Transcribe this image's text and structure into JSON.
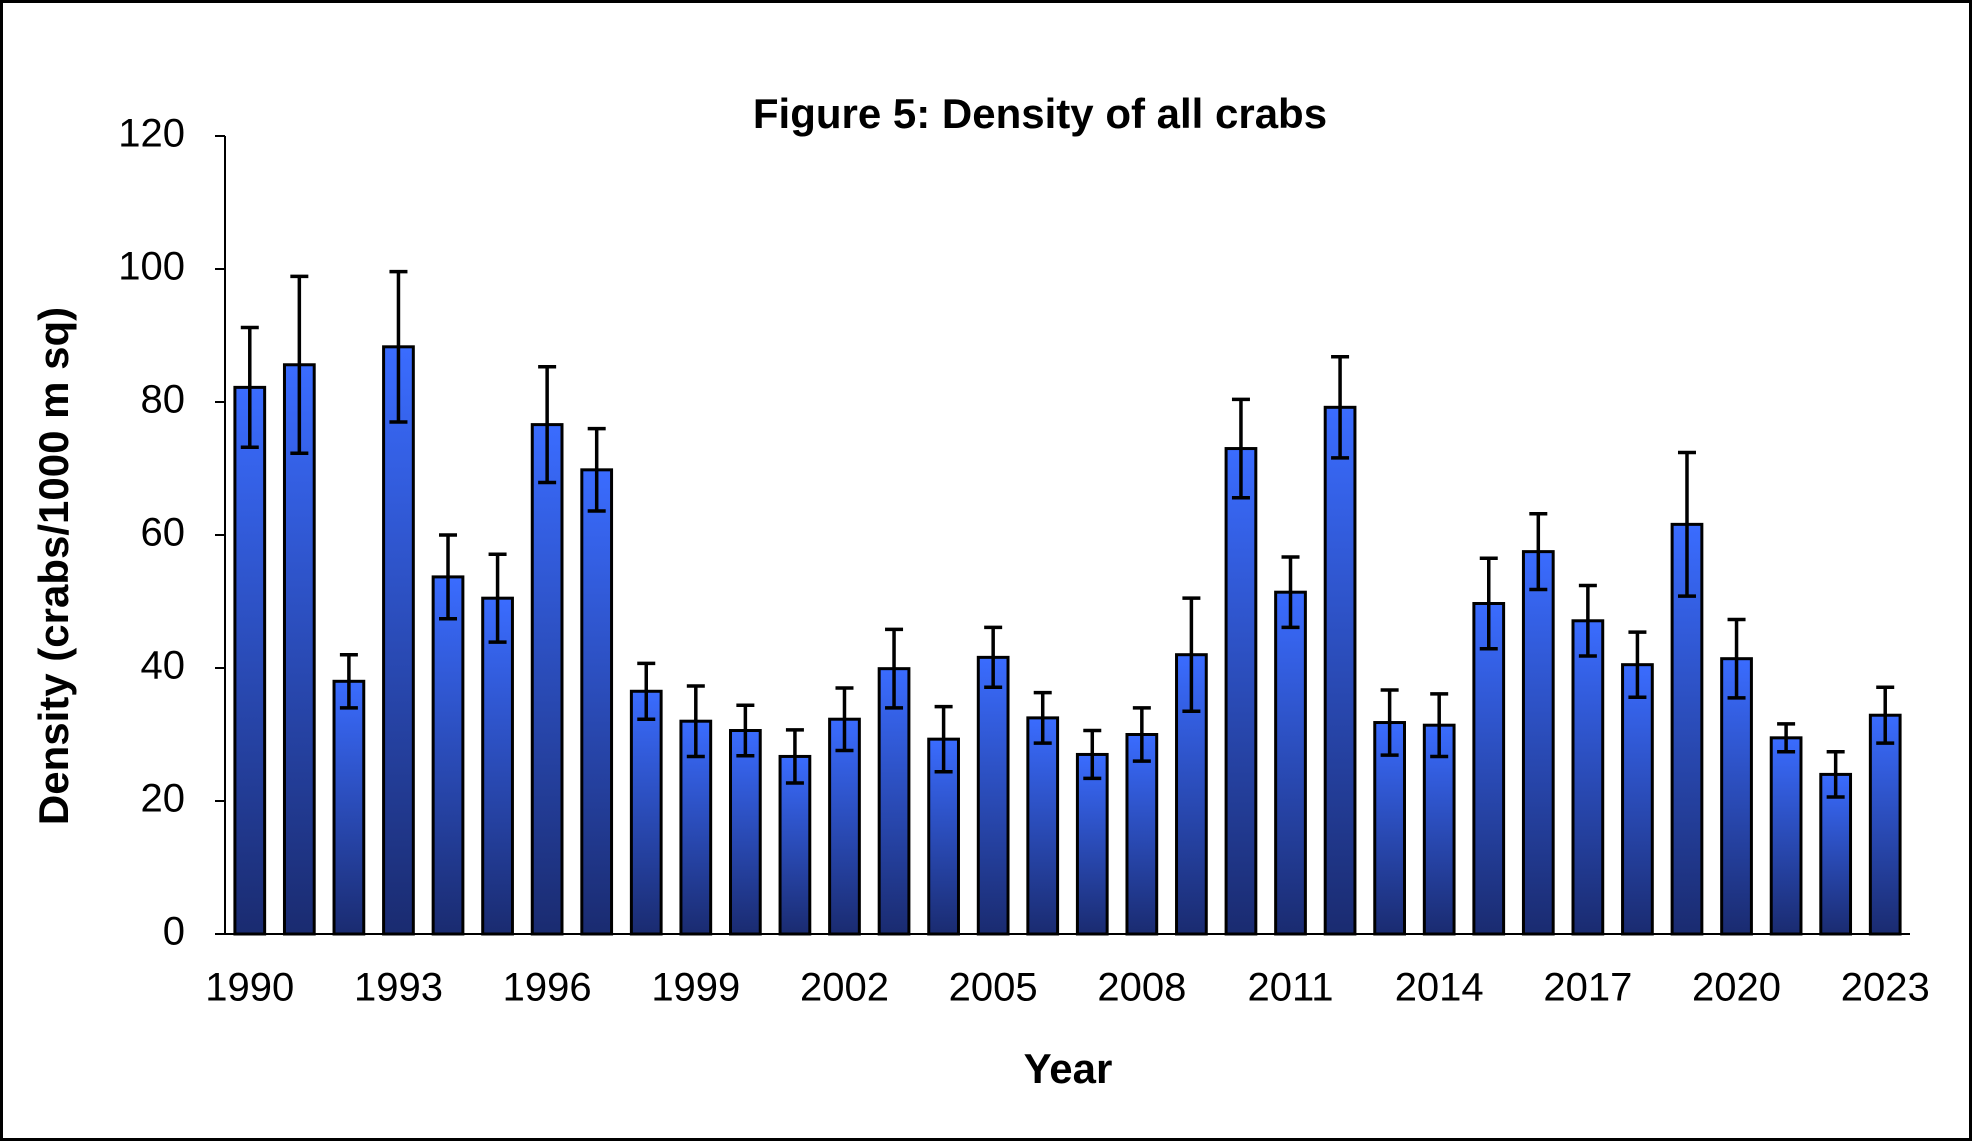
{
  "chart_data": {
    "type": "bar",
    "title": "Figure 5: Density of all crabs",
    "x_label": "Year",
    "y_label": "Density (crabs/1000 m sq)",
    "categories": [
      "1990",
      null,
      null,
      "1993",
      null,
      null,
      "1996",
      null,
      null,
      "1999",
      null,
      null,
      "2002",
      null,
      null,
      "2005",
      null,
      null,
      "2008",
      null,
      null,
      "2011",
      null,
      null,
      "2014",
      null,
      null,
      "2017",
      null,
      null,
      "2020",
      null,
      null,
      "2023"
    ],
    "values": [
      82.2,
      85.6,
      38,
      88.3,
      53.7,
      50.5,
      76.6,
      69.8,
      36.5,
      32,
      30.6,
      26.7,
      32.3,
      39.9,
      29.3,
      41.6,
      32.5,
      27,
      30,
      42,
      73,
      51.4,
      79.2,
      31.8,
      31.4,
      49.7,
      57.5,
      47.1,
      40.5,
      61.6,
      41.4,
      29.5,
      24,
      32.9
    ],
    "errors": [
      9,
      13.3,
      4,
      11.3,
      6.3,
      6.6,
      8.7,
      6.2,
      4.2,
      5.3,
      3.8,
      4,
      4.7,
      5.9,
      4.9,
      4.5,
      3.8,
      3.6,
      4,
      8.5,
      7.4,
      5.3,
      7.6,
      4.9,
      4.7,
      6.8,
      5.7,
      5.3,
      4.9,
      10.8,
      5.9,
      2.1,
      3.4,
      4.2
    ],
    "color": "#3366ff",
    "ylim": [
      0,
      120
    ],
    "yticks": [
      0,
      20,
      40,
      60,
      80,
      100,
      120
    ],
    "grid": false
  }
}
